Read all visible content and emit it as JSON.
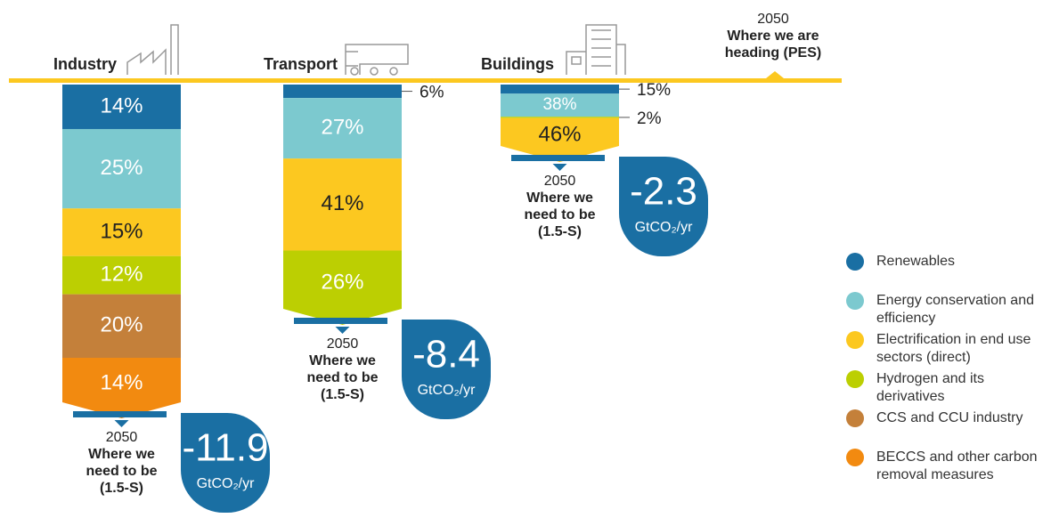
{
  "chart_data": {
    "type": "stacked-bar",
    "current_label": [
      "2050",
      "Where we are",
      "heading (PES)"
    ],
    "target_label": [
      "2050",
      "Where we",
      "need to be",
      "(1.5-S)"
    ],
    "total_unit": "GtCO₂/yr",
    "sectors": [
      {
        "name": "Industry",
        "total": -11.9,
        "values": [
          14,
          25,
          15,
          12,
          20,
          14
        ],
        "value_labels": [
          "14%",
          "25%",
          "15%",
          "12%",
          "20%",
          "14%"
        ],
        "colors": [
          "#1a6fa3",
          "#7cc9cf",
          "#fcc820",
          "#bccf02",
          "#c4803a",
          "#f28a10"
        ]
      },
      {
        "name": "Transport",
        "total": -8.4,
        "values": [
          6,
          27,
          41,
          26
        ],
        "value_labels": [
          "6%",
          "27%",
          "41%",
          "26%"
        ],
        "colors": [
          "#1a6fa3",
          "#7cc9cf",
          "#fcc820",
          "#bccf02"
        ]
      },
      {
        "name": "Buildings",
        "total": -2.3,
        "values": [
          15,
          38,
          2,
          46
        ],
        "value_labels": [
          "15%",
          "38%",
          "2%",
          "46%"
        ],
        "colors": [
          "#1a6fa3",
          "#7cc9cf",
          "#bccf02",
          "#fcc820"
        ]
      }
    ],
    "series": [
      {
        "name": "Renewables",
        "color": "#1a6fa3"
      },
      {
        "name": "Energy conservation and efficiency",
        "color": "#7cc9cf"
      },
      {
        "name": "Electrification in end use sectors (direct)",
        "color": "#fcc820"
      },
      {
        "name": "Hydrogen and its derivatives",
        "color": "#bccf02"
      },
      {
        "name": "CCS and CCU industry",
        "color": "#c4803a"
      },
      {
        "name": "BECCS and other carbon removal measures",
        "color": "#f28a10"
      }
    ]
  }
}
